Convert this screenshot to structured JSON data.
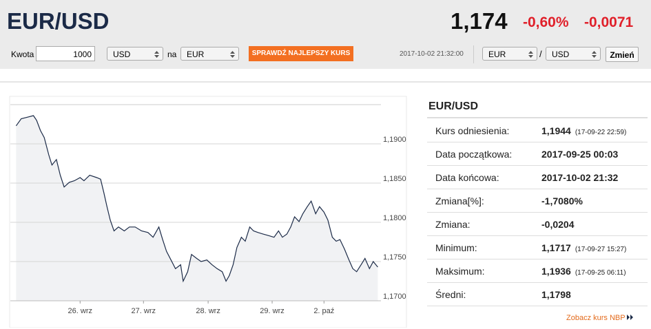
{
  "header": {
    "pair": "EUR/USD",
    "rate": "1,174",
    "change_pct": "-0,60%",
    "change": "-0,0071"
  },
  "converter": {
    "amount_label": "Kwota",
    "amount": "1000",
    "from": "USD",
    "connector": "na",
    "to": "EUR",
    "button": "SPRAWDŹ NAJLEPSZY KURS",
    "timestamp": "2017-10-02 21:32:00",
    "pair_from": "EUR",
    "separator": "/",
    "pair_to": "USD",
    "swap_button": "Zmień"
  },
  "chart_data": {
    "type": "line",
    "color": "#1b2a47",
    "x": [
      0,
      0.08,
      0.18,
      0.27,
      0.32,
      0.38,
      0.44,
      0.51,
      0.56,
      0.63,
      0.69,
      0.75,
      0.83,
      0.91,
      1.0,
      1.06,
      1.15,
      1.26,
      1.32,
      1.37,
      1.42,
      1.47,
      1.53,
      1.6,
      1.69,
      1.77,
      1.86,
      1.96,
      2.06,
      2.14,
      2.23,
      2.29,
      2.35,
      2.42,
      2.49,
      2.57,
      2.61,
      2.68,
      2.74,
      2.82,
      2.89,
      2.98,
      3.06,
      3.14,
      3.22,
      3.28,
      3.33,
      3.39,
      3.45,
      3.52,
      3.58,
      3.65,
      3.71,
      3.78,
      3.86,
      3.95,
      4.03,
      4.1,
      4.16,
      4.23,
      4.29,
      4.35,
      4.42,
      4.48,
      4.55,
      4.61,
      4.68,
      4.74,
      4.81,
      4.87,
      4.94,
      5.0,
      5.06,
      5.13,
      5.19,
      5.26,
      5.32,
      5.39,
      5.45,
      5.52,
      5.58,
      5.65
    ],
    "values": [
      1.1923,
      1.1932,
      1.1934,
      1.1936,
      1.193,
      1.1917,
      1.1908,
      1.1886,
      1.1873,
      1.188,
      1.186,
      1.1845,
      1.1851,
      1.1853,
      1.1857,
      1.1853,
      1.186,
      1.1857,
      1.1855,
      1.1838,
      1.182,
      1.1803,
      1.1789,
      1.1794,
      1.1789,
      1.1794,
      1.1794,
      1.1789,
      1.1787,
      1.1781,
      1.1794,
      1.1778,
      1.1763,
      1.1752,
      1.1741,
      1.1746,
      1.1725,
      1.1737,
      1.1759,
      1.1754,
      1.175,
      1.1752,
      1.1746,
      1.1741,
      1.1737,
      1.1725,
      1.1732,
      1.1746,
      1.1768,
      1.1781,
      1.1776,
      1.1794,
      1.1789,
      1.1787,
      1.1785,
      1.1783,
      1.1781,
      1.1789,
      1.1781,
      1.1785,
      1.1794,
      1.1807,
      1.1801,
      1.1811,
      1.182,
      1.1827,
      1.1811,
      1.182,
      1.1813,
      1.1803,
      1.1781,
      1.1776,
      1.1778,
      1.1766,
      1.1754,
      1.1741,
      1.1737,
      1.1746,
      1.1754,
      1.1741,
      1.175,
      1.1743
    ],
    "xlim": [
      -0.09,
      5.7
    ],
    "xticks": [
      {
        "value": 1.0,
        "label": "26. wrz"
      },
      {
        "value": 1.99,
        "label": "27. wrz"
      },
      {
        "value": 3.0,
        "label": "28. wrz"
      },
      {
        "value": 4.0,
        "label": "29. wrz"
      },
      {
        "value": 4.81,
        "label": "2. paź"
      }
    ],
    "ylim": [
      1.17,
      1.195
    ],
    "yticks": [
      {
        "value": 1.17,
        "label": "1,1700"
      },
      {
        "value": 1.175,
        "label": "1,1750"
      },
      {
        "value": 1.18,
        "label": "1,1800"
      },
      {
        "value": 1.185,
        "label": "1,1850"
      },
      {
        "value": 1.19,
        "label": "1,1900"
      }
    ],
    "grid": true
  },
  "info": {
    "title": "EUR/USD",
    "rows": [
      {
        "label": "Kurs odniesienia:",
        "value": "1,1944",
        "note": "(17-09-22 22:59)"
      },
      {
        "label": "Data początkowa:",
        "value": "2017-09-25 00:03"
      },
      {
        "label": "Data końcowa:",
        "value": "2017-10-02 21:32"
      },
      {
        "label": "Zmiana[%]:",
        "value": "-1,7080%"
      },
      {
        "label": "Zmiana:",
        "value": "-0,0204"
      },
      {
        "label": "Minimum:",
        "value": "1,1717",
        "note": "(17-09-27 15:27)"
      },
      {
        "label": "Maksimum:",
        "value": "1,1936",
        "note": "(17-09-25 06:11)"
      },
      {
        "label": "Średni:",
        "value": "1,1798"
      }
    ]
  },
  "link": "Zobacz kurs NBP"
}
